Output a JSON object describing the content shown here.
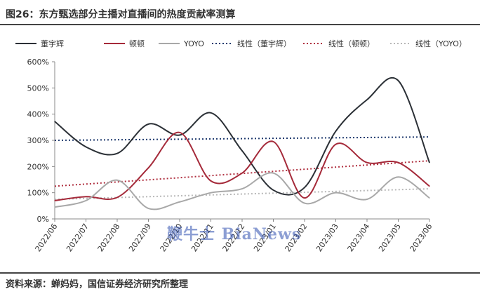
{
  "header": {
    "title": "图26：东方甄选部分主播对直播间的热度贡献率测算"
  },
  "footer": {
    "source": "资料来源：蝉妈妈，国信证券经济研究所整理"
  },
  "watermark": {
    "text": "鞭牛士 BiaNews"
  },
  "chart_data": {
    "type": "line",
    "categories": [
      "2022/06",
      "2022/07",
      "2022/08",
      "2022/09",
      "2022/10",
      "2022/11",
      "2022/12",
      "2023/01",
      "2023/02",
      "2023/03",
      "2023/04",
      "2023/05",
      "2023/06"
    ],
    "ylim": [
      0,
      600
    ],
    "yticks": [
      0,
      100,
      200,
      300,
      400,
      500,
      600
    ],
    "ytick_labels": [
      "0%",
      "100%",
      "200%",
      "300%",
      "400%",
      "500%",
      "600%"
    ],
    "grid": false,
    "legend_position": "top",
    "series": [
      {
        "name": "董宇辉",
        "color": "#2b3036",
        "style": "solid",
        "values": [
          372,
          275,
          250,
          362,
          320,
          405,
          260,
          110,
          120,
          335,
          455,
          528,
          215
        ]
      },
      {
        "name": "顿顿",
        "color": "#a52a3a",
        "style": "solid",
        "values": [
          70,
          85,
          82,
          195,
          330,
          145,
          175,
          295,
          80,
          285,
          215,
          215,
          125
        ]
      },
      {
        "name": "YOYO",
        "color": "#a8a8a8",
        "style": "solid",
        "values": [
          45,
          70,
          148,
          40,
          65,
          100,
          115,
          175,
          60,
          100,
          75,
          160,
          80
        ]
      },
      {
        "name": "线性（董宇辉）",
        "color": "#1f3a6e",
        "style": "dotted",
        "trend": [
          300,
          313
        ]
      },
      {
        "name": "线性（顿顿）",
        "color": "#b03040",
        "style": "dotted",
        "trend": [
          125,
          222
        ]
      },
      {
        "name": "线性（YOYO）",
        "color": "#b8b8b8",
        "style": "dotted",
        "trend": [
          75,
          115
        ]
      }
    ]
  }
}
